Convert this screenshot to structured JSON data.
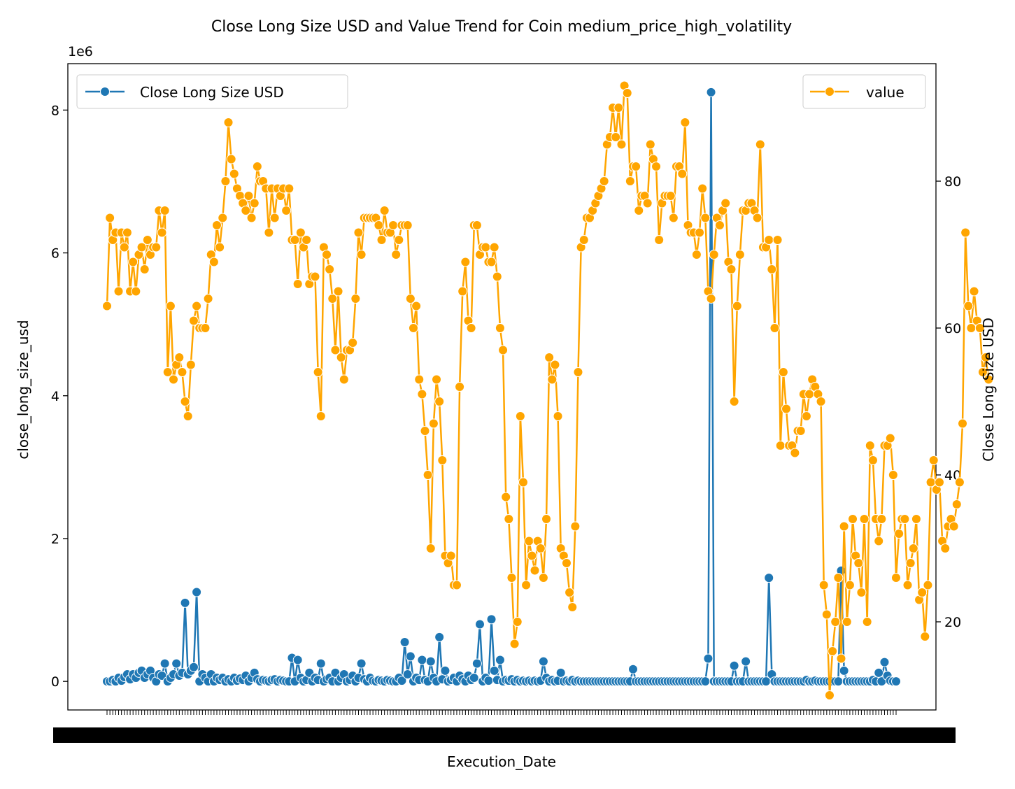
{
  "chart_data": {
    "type": "line",
    "title": "Close Long Size USD and Value Trend for Coin medium_price_high_volatility",
    "xlabel": "Execution_Date",
    "ylabel_left": "close_long_size_usd",
    "ylabel_right": "Close Long Size USD",
    "left_offset_text": "1e6",
    "left_ylim": [
      -0.4,
      8.65
    ],
    "left_ticks": [
      0,
      2,
      4,
      6,
      8
    ],
    "right_ylim": [
      8,
      96
    ],
    "right_ticks": [
      20,
      40,
      60,
      80
    ],
    "x_ticks_unreadable": true,
    "grid": false,
    "legends": [
      {
        "label": "Close Long Size USD",
        "position": "top-left",
        "color": "#1f77b4"
      },
      {
        "label": "value",
        "position": "top-right",
        "color": "#ffa500"
      }
    ],
    "series": [
      {
        "name": "Close Long Size USD",
        "axis": "left",
        "color": "#1f77b4",
        "values": [
          0,
          0,
          0.02,
          0,
          0.05,
          0.01,
          0.06,
          0.1,
          0.03,
          0.1,
          0.05,
          0.12,
          0.15,
          0.05,
          0.1,
          0.15,
          0.05,
          0,
          0.1,
          0.08,
          0.25,
          0,
          0.05,
          0.1,
          0.25,
          0.08,
          0.12,
          1.1,
          0.1,
          0.15,
          0.2,
          1.25,
          0,
          0.1,
          0.05,
          0,
          0.1,
          0,
          0.05,
          0.02,
          0.05,
          0,
          0.03,
          0,
          0.05,
          0.01,
          0.04,
          0.02,
          0.08,
          0,
          0.05,
          0.12,
          0.03,
          0,
          0.02,
          0.01,
          0,
          0.02,
          0.03,
          0,
          0.02,
          0.01,
          0,
          0,
          0.33,
          0,
          0.3,
          0.05,
          0,
          0.02,
          0.12,
          0,
          0.05,
          0.02,
          0.25,
          0,
          0.03,
          0.05,
          0,
          0.12,
          0,
          0.05,
          0.1,
          0,
          0.02,
          0.08,
          0,
          0.05,
          0.25,
          0.03,
          0,
          0.05,
          0.01,
          0,
          0.02,
          0.01,
          0,
          0.02,
          0.01,
          0,
          0,
          0.05,
          0.01,
          0.55,
          0.1,
          0.35,
          0,
          0.05,
          0.02,
          0.3,
          0.02,
          0,
          0.28,
          0.05,
          0,
          0.62,
          0.03,
          0.15,
          0,
          0.02,
          0.05,
          0,
          0.08,
          0.03,
          0,
          0.08,
          0.02,
          0.05,
          0.25,
          0.8,
          0,
          0.05,
          0.01,
          0.87,
          0.15,
          0.02,
          0.3,
          0,
          0.02,
          0.01,
          0.03,
          0,
          0.02,
          0,
          0.01,
          0,
          0.01,
          0,
          0.01,
          0,
          0.01,
          0.28,
          0.05,
          0,
          0.02,
          0,
          0.01,
          0.12,
          0,
          0.01,
          0,
          0.02,
          0,
          0.01,
          0,
          0,
          0,
          0,
          0,
          0,
          0,
          0,
          0,
          0,
          0,
          0,
          0,
          0,
          0,
          0,
          0,
          0,
          0.17,
          0,
          0,
          0,
          0,
          0,
          0,
          0,
          0,
          0,
          0,
          0,
          0,
          0,
          0,
          0,
          0,
          0,
          0,
          0,
          0,
          0,
          0,
          0,
          0,
          0,
          0.32,
          8.25,
          0,
          0,
          0,
          0,
          0,
          0,
          0,
          0.22,
          0,
          0,
          0,
          0.28,
          0,
          0,
          0,
          0,
          0,
          0,
          0,
          1.45,
          0.1,
          0,
          0,
          0,
          0,
          0,
          0,
          0,
          0,
          0,
          0,
          0,
          0.02,
          0,
          0,
          0.01,
          0,
          0,
          0,
          0,
          0,
          0,
          0,
          0,
          1.55,
          0.15,
          0,
          0,
          0,
          0,
          0,
          0,
          0,
          0,
          0,
          0.02,
          0,
          0.12,
          0,
          0.27,
          0.08,
          0.01,
          0,
          0
        ]
      },
      {
        "name": "value",
        "axis": "right",
        "color": "#ffa500",
        "values": [
          63,
          75,
          72,
          73,
          65,
          73,
          71,
          73,
          65,
          69,
          65,
          70,
          71,
          68,
          72,
          70,
          71,
          71,
          76,
          73,
          76,
          54,
          63,
          53,
          55,
          56,
          54,
          50,
          48,
          55,
          61,
          63,
          60,
          60,
          60,
          64,
          70,
          69,
          74,
          71,
          75,
          80,
          88,
          83,
          81,
          79,
          78,
          77,
          76,
          78,
          75,
          77,
          82,
          80,
          80,
          79,
          73,
          79,
          75,
          79,
          78,
          79,
          76,
          79,
          72,
          72,
          66,
          73,
          71,
          72,
          66,
          67,
          67,
          54,
          48,
          71,
          70,
          68,
          64,
          57,
          65,
          56,
          53,
          57,
          57,
          58,
          64,
          73,
          70,
          75,
          75,
          75,
          75,
          75,
          74,
          72,
          76,
          73,
          73,
          74,
          70,
          72,
          74,
          74,
          74,
          64,
          60,
          63,
          53,
          51,
          46,
          40,
          30,
          47,
          53,
          50,
          42,
          29,
          28,
          29,
          25,
          25,
          52,
          65,
          69,
          61,
          60,
          74,
          74,
          70,
          71,
          71,
          69,
          69,
          71,
          67,
          60,
          57,
          37,
          34,
          26,
          17,
          20,
          48,
          39,
          25,
          31,
          29,
          27,
          31,
          30,
          26,
          34,
          56,
          53,
          55,
          48,
          30,
          29,
          28,
          24,
          22,
          33,
          54,
          71,
          72,
          75,
          75,
          76,
          77,
          78,
          79,
          80,
          85,
          86,
          90,
          86,
          90,
          85,
          93,
          92,
          80,
          82,
          82,
          76,
          78,
          78,
          77,
          85,
          83,
          82,
          72,
          77,
          78,
          78,
          78,
          75,
          82,
          82,
          81,
          88,
          74,
          73,
          73,
          70,
          73,
          79,
          75,
          65,
          64,
          70,
          75,
          74,
          76,
          77,
          69,
          68,
          50,
          63,
          70,
          76,
          76,
          77,
          77,
          76,
          75,
          85,
          71,
          71,
          72,
          68,
          60,
          72,
          44,
          54,
          49,
          44,
          44,
          43,
          46,
          46,
          51,
          48,
          51,
          53,
          52,
          51,
          50,
          25,
          21,
          10,
          16,
          20,
          26,
          15,
          33,
          20,
          25,
          34,
          29,
          28,
          24,
          34,
          20,
          44,
          42,
          34,
          31,
          34,
          44,
          44,
          45,
          40,
          26,
          32,
          34,
          34,
          25,
          28,
          30,
          34,
          23,
          24,
          18,
          25,
          39,
          42,
          38,
          39,
          31,
          30,
          33,
          34,
          33,
          36,
          39,
          47,
          73,
          63,
          60,
          65,
          61,
          60,
          54,
          56,
          53
        ]
      }
    ]
  }
}
